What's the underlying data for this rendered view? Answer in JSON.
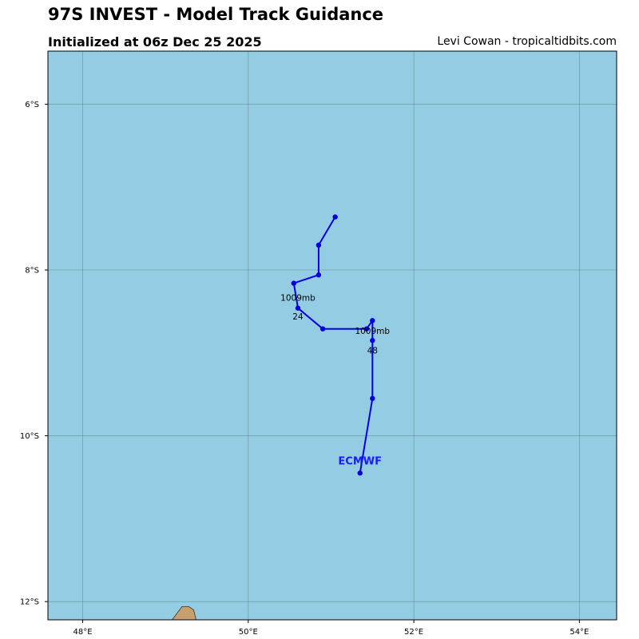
{
  "header": {
    "title": "97S INVEST - Model Track Guidance",
    "subtitle": "Initialized at 06z Dec 25 2025",
    "credit": "Levi Cowan - tropicaltidbits.com"
  },
  "colors": {
    "ocean": "#94cde3",
    "land": "#c8a06e",
    "grid": "#5a7f88",
    "track": "#0000e0",
    "model_label": "#1a1aff"
  },
  "chart_data": {
    "type": "track-map",
    "lon_range": [
      47.58,
      54.45
    ],
    "lat_range": [
      -12.22,
      -5.36
    ],
    "x_ticks": [
      {
        "value": 48,
        "label": "48°E"
      },
      {
        "value": 50,
        "label": "50°E"
      },
      {
        "value": 52,
        "label": "52°E"
      },
      {
        "value": 54,
        "label": "54°E"
      }
    ],
    "y_ticks": [
      {
        "value": -6,
        "label": "6°S"
      },
      {
        "value": -8,
        "label": "8°S"
      },
      {
        "value": -10,
        "label": "10°S"
      },
      {
        "value": -12,
        "label": "12°S"
      }
    ],
    "grid": true,
    "land": [
      {
        "name": "madagascar-tip",
        "points": [
          [
            49.08,
            -12.22
          ],
          [
            49.2,
            -12.06
          ],
          [
            49.28,
            -12.06
          ],
          [
            49.34,
            -12.1
          ],
          [
            49.37,
            -12.22
          ]
        ]
      }
    ],
    "series": [
      {
        "name": "ECMWF",
        "points": [
          {
            "lon": 51.35,
            "lat": -10.45
          },
          {
            "lon": 51.5,
            "lat": -9.55
          },
          {
            "lon": 51.5,
            "lat": -8.85
          },
          {
            "lon": 51.5,
            "lat": -8.61
          },
          {
            "lon": 51.43,
            "lat": -8.71
          },
          {
            "lon": 50.9,
            "lat": -8.71
          },
          {
            "lon": 50.6,
            "lat": -8.46
          },
          {
            "lon": 50.55,
            "lat": -8.16
          },
          {
            "lon": 50.85,
            "lat": -8.06
          },
          {
            "lon": 50.85,
            "lat": -7.7
          },
          {
            "lon": 51.05,
            "lat": -7.36
          }
        ],
        "label_point": {
          "lon": 51.35,
          "lat": -10.3
        }
      }
    ],
    "annotations": [
      {
        "text": "1009mb",
        "lon": 50.6,
        "lat": -8.33,
        "kind": "pressure"
      },
      {
        "text": "24",
        "lon": 50.6,
        "lat": -8.56,
        "kind": "hour"
      },
      {
        "text": "1009mb",
        "lon": 51.5,
        "lat": -8.73,
        "kind": "pressure"
      },
      {
        "text": "48",
        "lon": 51.5,
        "lat": -8.97,
        "kind": "hour"
      }
    ]
  }
}
